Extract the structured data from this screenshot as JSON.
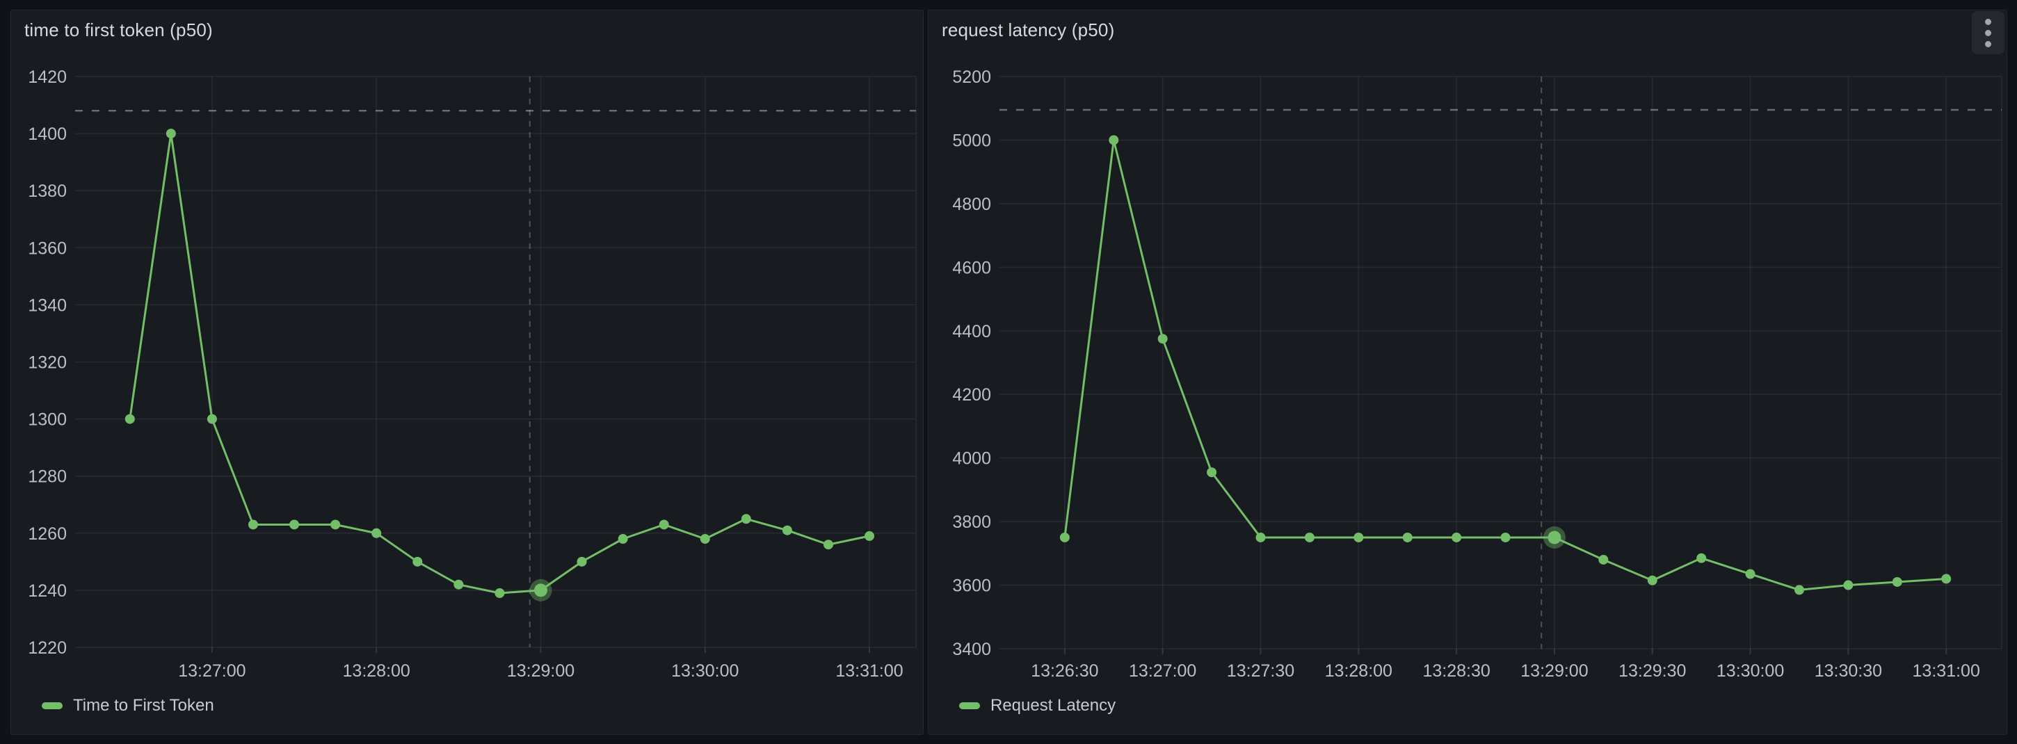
{
  "panels": [
    {
      "title": "time to first token (p50)",
      "legend": "Time to First Token",
      "accent": "#73BF69"
    },
    {
      "title": "request latency (p50)",
      "legend": "Request Latency",
      "accent": "#73BF69",
      "menu_icon": "kebab-menu",
      "menu_label": "Panel menu"
    }
  ],
  "chart_data": [
    {
      "type": "line",
      "title": "time to first token (p50)",
      "x": [
        "13:26:30",
        "13:26:45",
        "13:27:00",
        "13:27:15",
        "13:27:30",
        "13:27:45",
        "13:28:00",
        "13:28:15",
        "13:28:30",
        "13:28:45",
        "13:29:00",
        "13:29:15",
        "13:29:30",
        "13:29:45",
        "13:30:00",
        "13:30:15",
        "13:30:30",
        "13:30:45",
        "13:31:00"
      ],
      "series": [
        {
          "name": "Time to First Token",
          "color": "#73BF69",
          "values": [
            1300,
            1400,
            1300,
            1263,
            1263,
            1263,
            1260,
            1250,
            1242,
            1239,
            1240,
            1250,
            1258,
            1263,
            1258,
            1265,
            1261,
            1256,
            1259
          ]
        }
      ],
      "x_tick_labels": [
        "13:27:00",
        "13:28:00",
        "13:29:00",
        "13:30:00",
        "13:31:00"
      ],
      "y_ticks": [
        1220,
        1240,
        1260,
        1280,
        1300,
        1320,
        1340,
        1360,
        1380,
        1400,
        1420
      ],
      "xlim": [
        "13:26:10",
        "13:31:17"
      ],
      "ylim": [
        1220,
        1420
      ],
      "threshold_line": 1408,
      "cursor_time": "13:28:56",
      "highlight_index": 10,
      "highlight_value": 1240,
      "grid": true,
      "legend_position": "bottom-left"
    },
    {
      "type": "line",
      "title": "request latency (p50)",
      "x": [
        "13:26:30",
        "13:26:45",
        "13:27:00",
        "13:27:15",
        "13:27:30",
        "13:27:45",
        "13:28:00",
        "13:28:15",
        "13:28:30",
        "13:28:45",
        "13:29:00",
        "13:29:15",
        "13:29:30",
        "13:29:45",
        "13:30:00",
        "13:30:15",
        "13:30:30",
        "13:30:45",
        "13:31:00"
      ],
      "series": [
        {
          "name": "Request Latency",
          "color": "#73BF69",
          "values": [
            3750,
            5000,
            4375,
            3955,
            3750,
            3750,
            3750,
            3750,
            3750,
            3750,
            3750,
            3680,
            3615,
            3685,
            3635,
            3585,
            3600,
            3610,
            3620
          ]
        }
      ],
      "x_tick_labels": [
        "13:26:30",
        "13:27:00",
        "13:27:30",
        "13:28:00",
        "13:28:30",
        "13:29:00",
        "13:29:30",
        "13:30:00",
        "13:30:30",
        "13:31:00"
      ],
      "y_ticks": [
        3400,
        3600,
        3800,
        4000,
        4200,
        4400,
        4600,
        4800,
        5000,
        5200
      ],
      "xlim": [
        "13:26:10",
        "13:31:17"
      ],
      "ylim": [
        3400,
        5200
      ],
      "threshold_line": 5095,
      "cursor_time": "13:28:56",
      "highlight_index": 10,
      "highlight_value": 3750,
      "grid": true,
      "legend_position": "bottom-left"
    }
  ],
  "colors": {
    "page_bg": "#111217",
    "panel_bg": "#181b1f",
    "grid": "rgba(204,204,220,0.09)",
    "tick": "rgba(204,204,220,0.16)",
    "axis_text": "#bcbec9",
    "threshold": "rgba(204,204,220,0.45)",
    "cursor": "rgba(204,204,220,0.30)",
    "series_green": "#73BF69"
  }
}
